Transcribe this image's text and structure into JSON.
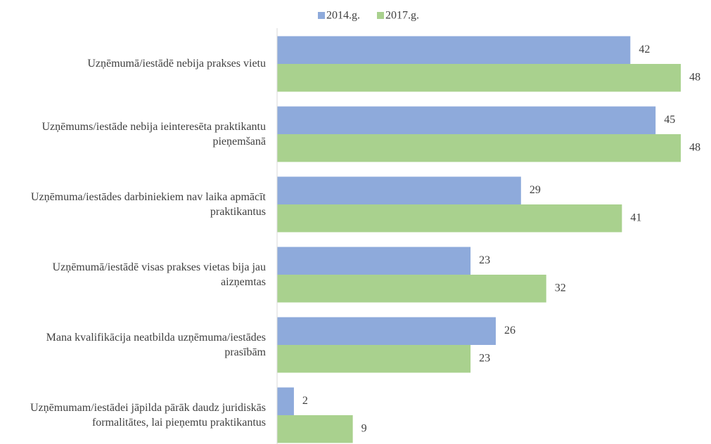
{
  "chart_data": {
    "type": "bar",
    "orientation": "horizontal",
    "categories": [
      "Uzņēmumā/iestādē nebija prakses vietu",
      "Uzņēmums/iestāde nebija ieinteresēta praktikantu pieņemšanā",
      "Uzņēmuma/iestādes darbiniekiem nav laika apmācīt praktikantus",
      "Uzņēmumā/iestādē visas prakses vietas bija jau aizņemtas",
      "Mana kvalifikācija neatbilda uzņēmuma/iestādes prasībām",
      "Uzņēmumam/iestādei jāpilda pārāk daudz juridiskās formalitātes, lai pieņemtu praktikantus"
    ],
    "series": [
      {
        "name": "2014.g.",
        "color": "#8eaadb",
        "values": [
          42,
          45,
          29,
          23,
          26,
          2
        ]
      },
      {
        "name": "2017.g.",
        "color": "#a9d18e",
        "values": [
          48,
          48,
          41,
          32,
          23,
          9
        ]
      }
    ],
    "xlim": [
      0,
      50
    ],
    "legend": "top"
  }
}
